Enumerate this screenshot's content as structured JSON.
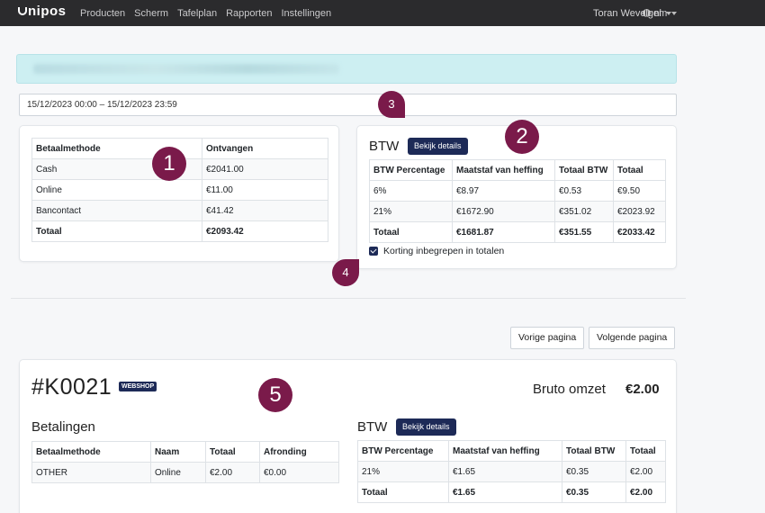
{
  "navbar": {
    "brand": "nipos",
    "links": [
      "Producten",
      "Scherm",
      "Tafelplan",
      "Rapporten",
      "Instellingen"
    ],
    "language": "nl",
    "user": "Toran Wevelgem"
  },
  "filter": {
    "date_range": "15/12/2023 00:00 – 15/12/2023 23:59"
  },
  "payments": {
    "headers": [
      "Betaalmethode",
      "Ontvangen"
    ],
    "rows": [
      [
        "Cash",
        "€2041.00"
      ],
      [
        "Online",
        "€11.00"
      ],
      [
        "Bancontact",
        "€41.42"
      ]
    ],
    "total": [
      "Totaal",
      "€2093.42"
    ]
  },
  "btw": {
    "title": "BTW",
    "details_button": "Bekijk details",
    "headers": [
      "BTW Percentage",
      "Maatstaf van heffing",
      "Totaal BTW",
      "Totaal"
    ],
    "rows": [
      [
        "6%",
        "€8.97",
        "€0.53",
        "€9.50"
      ],
      [
        "21%",
        "€1672.90",
        "€351.02",
        "€2023.92"
      ]
    ],
    "total": [
      "Totaal",
      "€1681.87",
      "€351.55",
      "€2033.42"
    ],
    "checkbox_label": "Korting inbegrepen in totalen"
  },
  "pagination": {
    "prev": "Vorige pagina",
    "next": "Volgende pagina"
  },
  "order": {
    "id": "#K0021",
    "badge": "WEBSHOP",
    "bruto_label": "Bruto omzet",
    "bruto_value": "€2.00",
    "payments_title": "Betalingen",
    "payments_headers": [
      "Betaalmethode",
      "Naam",
      "Totaal",
      "Afronding"
    ],
    "payments_rows": [
      [
        "OTHER",
        "Online",
        "€2.00",
        "€0.00"
      ]
    ],
    "btw_title": "BTW",
    "btw_button": "Bekijk details",
    "btw_headers": [
      "BTW Percentage",
      "Maatstaf van heffing",
      "Totaal BTW",
      "Totaal"
    ],
    "btw_rows": [
      [
        "21%",
        "€1.65",
        "€0.35",
        "€2.00"
      ]
    ],
    "btw_total": [
      "Totaal",
      "€1.65",
      "€0.35",
      "€2.00"
    ]
  },
  "markers": [
    "1",
    "2",
    "3",
    "4",
    "5"
  ],
  "colors": {
    "navbar": "#2b2b2d",
    "primary_button": "#1d2a57",
    "marker": "#7a1a4a",
    "alert": "#cdeff2"
  }
}
